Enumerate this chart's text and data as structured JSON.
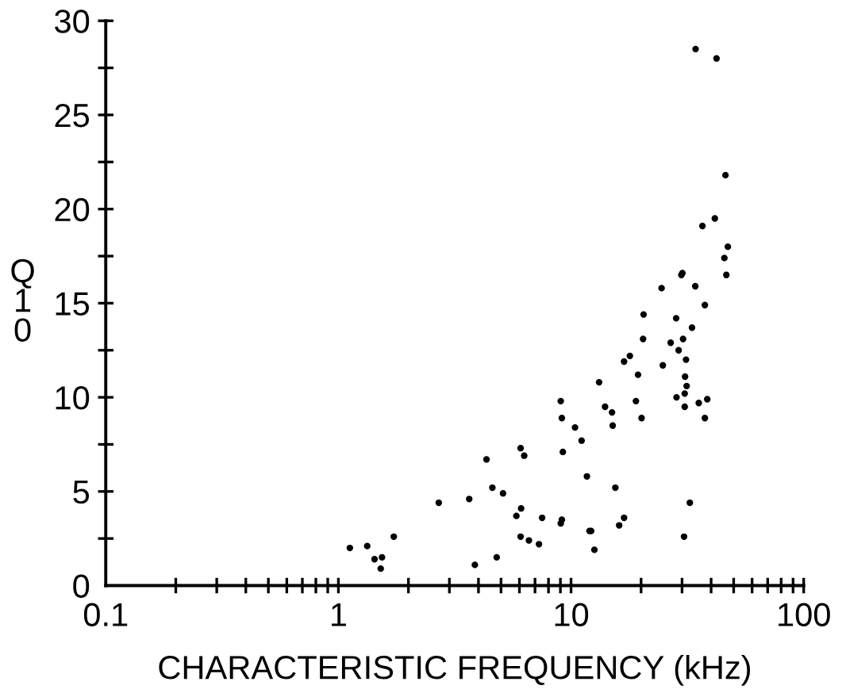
{
  "chart_data": {
    "type": "scatter",
    "xlabel": "CHARACTERISTIC FREQUENCY (kHz)",
    "ylabel": "Q10",
    "log": "x",
    "marker": "circle",
    "grid": false,
    "xlim": [
      0.1,
      100
    ],
    "ylim": [
      0,
      30
    ],
    "xticks": [
      0.1,
      {
        "value": 0.2,
        "label": null
      },
      {
        "value": 0.3,
        "label": null
      },
      {
        "value": 0.4,
        "label": null
      },
      {
        "value": 0.5,
        "label": null
      },
      {
        "value": 0.6,
        "label": null
      },
      {
        "value": 0.7,
        "label": null
      },
      {
        "value": 0.8,
        "label": null
      },
      {
        "value": 0.9,
        "label": null
      },
      1,
      {
        "value": 2,
        "label": null
      },
      {
        "value": 3,
        "label": null
      },
      {
        "value": 4,
        "label": null
      },
      {
        "value": 5,
        "label": null
      },
      {
        "value": 6,
        "label": null
      },
      {
        "value": 7,
        "label": null
      },
      {
        "value": 8,
        "label": null
      },
      {
        "value": 9,
        "label": null
      },
      10,
      {
        "value": 20,
        "label": null
      },
      {
        "value": 30,
        "label": null
      },
      {
        "value": 40,
        "label": null
      },
      {
        "value": 50,
        "label": null
      },
      {
        "value": 60,
        "label": null
      },
      {
        "value": 70,
        "label": null
      },
      {
        "value": 80,
        "label": null
      },
      {
        "value": 90,
        "label": null
      },
      100
    ],
    "yticks": [
      0,
      {
        "value": 2.5,
        "label": null
      },
      5,
      {
        "value": 7.5,
        "label": null
      },
      10,
      {
        "value": 12.5,
        "label": null
      },
      15,
      {
        "value": 17.5,
        "label": null
      },
      20,
      {
        "value": 22.5,
        "label": null
      },
      25,
      {
        "value": 27.5,
        "label": null
      },
      30
    ],
    "series": [
      {
        "color": "#000000",
        "x": [
          1.12,
          1.33,
          1.43,
          1.54,
          1.52,
          1.73,
          2.7,
          3.65,
          3.86,
          4.33,
          4.59,
          5.1,
          4.79,
          6.07,
          6.29,
          6.1,
          5.82,
          6.07,
          6.59,
          7.28,
          7.51,
          24.5,
          34.2,
          37.6,
          20.5,
          28.3,
          33.1,
          20.4,
          26.8,
          30.3,
          29.0,
          31.2,
          16.9,
          17.9,
          24.8,
          19.4,
          30.9,
          31.4,
          13.2,
          30.8,
          28.4,
          19.0,
          35.4,
          38.5,
          9.03,
          14.0,
          15.0,
          9.13,
          30.8,
          20.1,
          37.6,
          15.1,
          10.4,
          11.1,
          9.22,
          11.7,
          15.5,
          32.4,
          9.13,
          9.03,
          16.9,
          16.1,
          12.2,
          12.0,
          12.6,
          30.6,
          34.3,
          42.2,
          46.1,
          41.5,
          36.7,
          47.2,
          45.6,
          46.5,
          30.1,
          29.8
        ],
        "values": [
          2.0,
          2.1,
          1.4,
          1.5,
          0.9,
          2.6,
          4.4,
          4.6,
          1.1,
          6.7,
          5.2,
          4.9,
          1.5,
          7.3,
          6.9,
          4.1,
          3.7,
          2.6,
          2.4,
          2.2,
          3.6,
          15.8,
          15.9,
          14.9,
          14.4,
          14.2,
          13.7,
          13.1,
          12.9,
          13.1,
          12.5,
          12.0,
          11.9,
          12.2,
          11.7,
          11.2,
          11.1,
          10.6,
          10.8,
          10.2,
          10.0,
          9.8,
          9.7,
          9.9,
          9.8,
          9.5,
          9.2,
          8.9,
          9.5,
          8.9,
          8.9,
          8.5,
          8.4,
          7.7,
          7.1,
          5.8,
          5.2,
          4.4,
          3.5,
          3.3,
          3.6,
          3.2,
          2.9,
          2.9,
          1.9,
          2.6,
          28.5,
          28.0,
          21.8,
          19.5,
          19.1,
          18.0,
          17.4,
          16.5,
          16.6,
          16.5
        ]
      }
    ]
  }
}
